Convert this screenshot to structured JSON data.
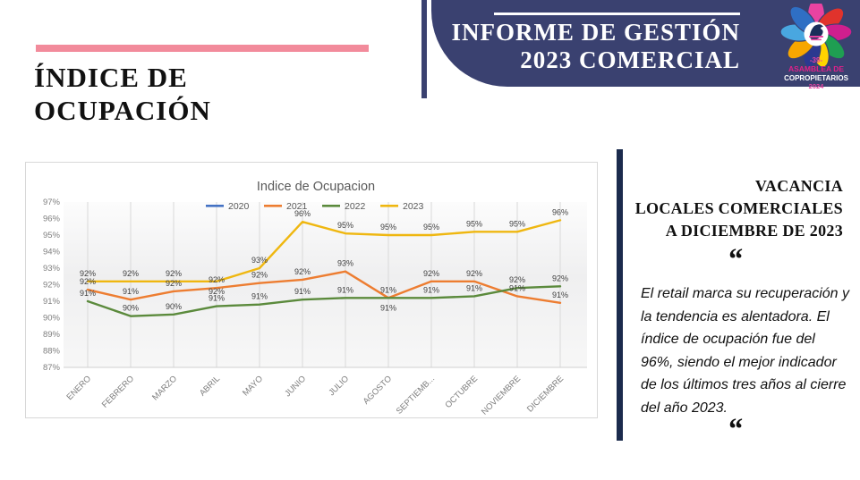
{
  "slide": {
    "title_line1": "ÍNDICE DE",
    "title_line2": "OCUPACIÓN",
    "accent_color": "#f28b9b"
  },
  "banner": {
    "bg_color": "#3a4170",
    "line1": "INFORME DE GESTIÓN",
    "line2": "2023 COMERCIAL",
    "logo": {
      "badge_number": "-39-",
      "badge_line1": "ASAMBLEA DE",
      "badge_line2": "COPROPIETARIOS",
      "badge_year": "2024"
    }
  },
  "chart_data": {
    "type": "line",
    "title": "Indice de Ocupacion",
    "categories": [
      "ENERO",
      "FEBRERO",
      "MARZO",
      "ABRIL",
      "MAYO",
      "JUNIO",
      "JULIO",
      "AGOSTO",
      "SEPTIEMB...",
      "OCTUBRE",
      "NOVIEMBRE",
      "DICIEMBRE"
    ],
    "y_ticks": [
      "97%",
      "96%",
      "95%",
      "94%",
      "93%",
      "92%",
      "91%",
      "90%",
      "89%",
      "88%",
      "87%"
    ],
    "ylim": [
      87,
      97
    ],
    "legend_position": "top",
    "gridlines": "vertical",
    "series": [
      {
        "name": "2020",
        "color": "#4472c4",
        "values": [],
        "labels": []
      },
      {
        "name": "2021",
        "color": "#ed7d31",
        "values": [
          91.7,
          91.1,
          91.6,
          91.8,
          92.1,
          92.3,
          92.8,
          91.2,
          92.2,
          92.2,
          91.3,
          90.9
        ],
        "labels": [
          "92%",
          "91%",
          "92%",
          "92%",
          "92%",
          "92%",
          "93%",
          "91%",
          "92%",
          "92%",
          "91%",
          "91%"
        ]
      },
      {
        "name": "2022",
        "color": "#5b8a3c",
        "values": [
          91.0,
          90.1,
          90.2,
          90.7,
          90.8,
          91.1,
          91.2,
          91.2,
          91.2,
          91.3,
          91.8,
          91.9
        ],
        "labels": [
          "91%",
          "90%",
          "90%",
          "91%",
          "91%",
          "91%",
          "91%",
          "91%",
          "91%",
          "91%",
          "92%",
          "92%"
        ]
      },
      {
        "name": "2023",
        "color": "#efb710",
        "values": [
          92.2,
          92.2,
          92.2,
          92.2,
          93.0,
          95.8,
          95.1,
          95.0,
          95.0,
          95.2,
          95.2,
          95.9
        ],
        "labels": [
          "92%",
          "92%",
          "92%",
          "92%",
          "93%",
          "96%",
          "95%",
          "95%",
          "95%",
          "95%",
          "95%",
          "96%"
        ]
      }
    ]
  },
  "panel": {
    "bar_color": "#1b2b4d",
    "heading_line1": "VACANCIA",
    "heading_line2": "LOCALES COMERCIALES",
    "heading_line3": "A DICIEMBRE DE 2023",
    "quote_mark": "“",
    "quote_text": "El retail marca su recuperación y la tendencia es alentadora. El índice de ocupación fue del 96%, siendo el mejor indicador de los últimos tres años al cierre del año 2023."
  }
}
